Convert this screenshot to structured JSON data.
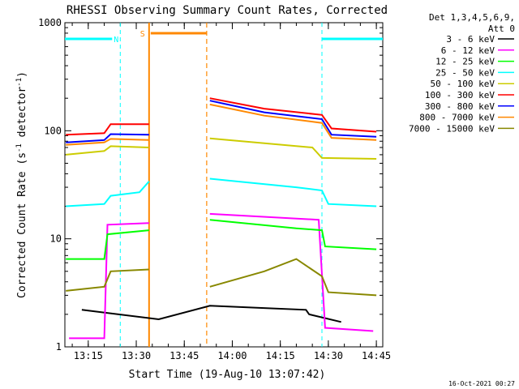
{
  "chart_data": {
    "type": "line",
    "title": "RHESSI Observing Summary Count Rates, Corrected",
    "xlabel": "Start Time (19-Aug-10 13:07:42)",
    "ylabel_main": "Corrected Count Rate (s",
    "ylabel_sup1": "-1",
    "ylabel_mid": " detector",
    "ylabel_sup2": "-1",
    "ylabel_end": ")",
    "footer_date": "16-Oct-2021 00:27",
    "y_scale": "log",
    "ylim": [
      1,
      1000
    ],
    "xlim": [
      "13:07:42",
      "14:47:00"
    ],
    "x_ticks": [
      "13:15",
      "13:30",
      "13:45",
      "14:00",
      "14:15",
      "14:30",
      "14:45"
    ],
    "y_ticks": [
      "1",
      "10",
      "100",
      "1000"
    ],
    "legend_header": [
      "Det 1,3,4,5,6,9,",
      "Att 0"
    ],
    "legend": [
      {
        "label": "3 - 6 keV",
        "color": "#000000"
      },
      {
        "label": "6 - 12 keV",
        "color": "#ff00ff"
      },
      {
        "label": "12 - 25 keV",
        "color": "#00ff00"
      },
      {
        "label": "25 - 50 keV",
        "color": "#00ffff"
      },
      {
        "label": "50 - 100 keV",
        "color": "#cccc00"
      },
      {
        "label": "100 - 300 keV",
        "color": "#ff0000"
      },
      {
        "label": "300 - 800 keV",
        "color": "#0000ff"
      },
      {
        "label": "800 - 7000 keV",
        "color": "#ff8800"
      },
      {
        "label": "7000 - 15000 keV",
        "color": "#888800"
      }
    ],
    "segment_labels": {
      "night": "N",
      "saa": "S"
    },
    "night_intervals": [
      [
        "13:07:42",
        "13:25:00"
      ],
      [
        "14:28:00",
        "14:47:00"
      ]
    ],
    "saa_interval": [
      "13:34:00",
      "13:52:00"
    ],
    "data_gap": [
      "13:34:00",
      "13:53:00"
    ],
    "series": [
      {
        "name": "3 - 6 keV",
        "color": "#000000",
        "t": [
          "13:13",
          "13:37",
          "13:53",
          "14:23",
          "14:24",
          "14:34"
        ],
        "y": [
          2.2,
          1.8,
          2.4,
          2.2,
          2.0,
          1.7
        ]
      },
      {
        "name": "6 - 12 keV",
        "color": "#ff00ff",
        "t": [
          "13:09",
          "13:20",
          "13:21",
          "13:34",
          "13:53",
          "14:27",
          "14:29",
          "14:44"
        ],
        "y": [
          1.2,
          1.2,
          13.5,
          14.0,
          17.0,
          15.0,
          1.5,
          1.4
        ]
      },
      {
        "name": "12 - 25 keV",
        "color": "#00ff00",
        "t": [
          "13:08",
          "13:20",
          "13:21",
          "13:34",
          "13:53",
          "14:20",
          "14:28",
          "14:29",
          "14:45"
        ],
        "y": [
          6.5,
          6.5,
          11.0,
          12.0,
          15.0,
          12.5,
          12.0,
          8.5,
          8.0
        ]
      },
      {
        "name": "25 - 50 keV",
        "color": "#00ffff",
        "t": [
          "13:08",
          "13:20",
          "13:22",
          "13:31",
          "13:34",
          "13:53",
          "14:20",
          "14:28",
          "14:30",
          "14:45"
        ],
        "y": [
          20.0,
          21.0,
          25.0,
          27.0,
          34.0,
          36.0,
          30.0,
          28.0,
          21.0,
          20.0
        ]
      },
      {
        "name": "50 - 100 keV",
        "color": "#cccc00",
        "t": [
          "13:08",
          "13:20",
          "13:22",
          "13:34",
          "13:53",
          "14:25",
          "14:28",
          "14:45"
        ],
        "y": [
          60.0,
          65.0,
          72.0,
          70.0,
          85.0,
          70.0,
          56.0,
          55.0
        ]
      },
      {
        "name": "100 - 300 keV",
        "color": "#ff0000",
        "t": [
          "13:08",
          "13:20",
          "13:22",
          "13:34",
          "13:53",
          "14:10",
          "14:28",
          "14:31",
          "14:45"
        ],
        "y": [
          92.0,
          95.0,
          115.0,
          115.0,
          200.0,
          160.0,
          140.0,
          105.0,
          98.0
        ]
      },
      {
        "name": "300 - 800 keV",
        "color": "#0000ff",
        "t": [
          "13:08",
          "13:20",
          "13:22",
          "13:34",
          "13:53",
          "14:10",
          "14:28",
          "14:31",
          "14:45"
        ],
        "y": [
          78.0,
          82.0,
          93.0,
          92.0,
          190.0,
          148.0,
          128.0,
          92.0,
          88.0
        ]
      },
      {
        "name": "800 - 7000 keV",
        "color": "#ff8800",
        "t": [
          "13:08",
          "13:20",
          "13:22",
          "13:34",
          "13:53",
          "14:10",
          "14:28",
          "14:31",
          "14:45"
        ],
        "y": [
          74.0,
          78.0,
          84.0,
          82.0,
          175.0,
          138.0,
          118.0,
          86.0,
          82.0
        ]
      },
      {
        "name": "7000 - 15000 keV",
        "color": "#888800",
        "t": [
          "13:08",
          "13:20",
          "13:22",
          "13:34",
          "13:53",
          "14:10",
          "14:20",
          "14:28",
          "14:30",
          "14:45"
        ],
        "y": [
          3.3,
          3.6,
          5.0,
          5.2,
          3.6,
          5.0,
          6.5,
          4.5,
          3.2,
          3.0
        ]
      }
    ]
  }
}
